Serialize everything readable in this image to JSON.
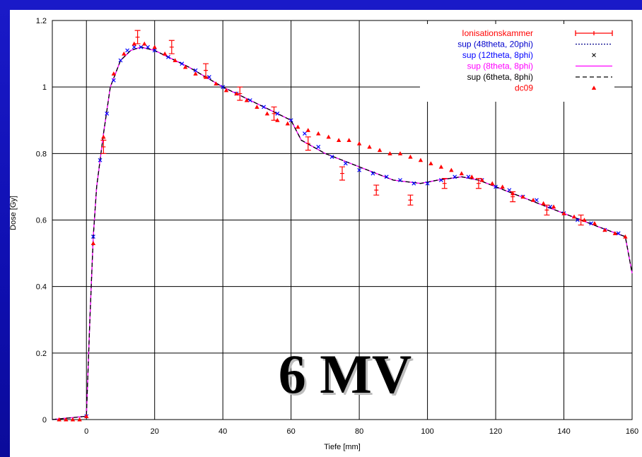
{
  "slide": {
    "background_color": "#1414c0",
    "overlay_label": "6 MV",
    "overlay_color": "#000000",
    "overlay_shadow": "#bdbdbd"
  },
  "chart_data": {
    "type": "line",
    "title": "",
    "xlabel": "Tiefe [mm]",
    "ylabel": "Dose [Gy]",
    "xlim": [
      -10,
      160
    ],
    "ylim": [
      0,
      1.2
    ],
    "xticks": [
      0,
      20,
      40,
      60,
      80,
      100,
      120,
      140,
      160
    ],
    "yticks": [
      0,
      0.2,
      0.4,
      0.6,
      0.8,
      1,
      1.2
    ],
    "ytick_labels": [
      "0",
      "0.2",
      "0.4",
      "0.6",
      "0.8",
      "1",
      "1.2"
    ],
    "grid": true,
    "legend_position": "top-right",
    "series": [
      {
        "name": "Ionisationskammer",
        "style": "errorbar",
        "color": "#ff0000",
        "x": [
          5,
          15,
          25,
          35,
          45,
          55,
          65,
          75,
          85,
          95,
          105,
          115,
          125,
          135,
          145
        ],
        "y": [
          0.82,
          1.15,
          1.12,
          1.05,
          0.98,
          0.92,
          0.83,
          0.74,
          0.69,
          0.66,
          0.71,
          0.71,
          0.67,
          0.63,
          0.6
        ],
        "err": [
          0.02,
          0.02,
          0.02,
          0.02,
          0.02,
          0.02,
          0.02,
          0.02,
          0.015,
          0.015,
          0.015,
          0.015,
          0.015,
          0.015,
          0.015
        ]
      },
      {
        "name": "sup (48theta, 20phi)",
        "style": "dotted",
        "color": "#00008b",
        "x": [
          -10,
          0,
          1,
          2,
          3,
          5,
          7,
          10,
          13,
          16,
          20,
          30,
          40,
          50,
          56,
          60,
          63,
          70,
          80,
          90,
          98,
          103,
          110,
          115,
          120,
          130,
          140,
          150,
          158,
          160
        ],
        "y": [
          0,
          0.01,
          0.3,
          0.55,
          0.7,
          0.86,
          1.0,
          1.08,
          1.11,
          1.12,
          1.11,
          1.06,
          1.0,
          0.95,
          0.92,
          0.9,
          0.84,
          0.8,
          0.76,
          0.72,
          0.71,
          0.72,
          0.73,
          0.72,
          0.7,
          0.66,
          0.62,
          0.58,
          0.55,
          0.44
        ]
      },
      {
        "name": "sup (12theta, 8phi)",
        "style": "markers",
        "color": "#0000ff",
        "x": [
          0,
          2,
          4,
          6,
          8,
          10,
          12,
          14,
          16,
          18,
          20,
          24,
          28,
          32,
          36,
          40,
          44,
          48,
          52,
          56,
          60,
          64,
          68,
          72,
          76,
          80,
          84,
          88,
          92,
          96,
          100,
          104,
          108,
          112,
          116,
          120,
          124,
          128,
          132,
          136,
          140,
          144,
          148,
          152,
          156
        ],
        "y": [
          0.01,
          0.55,
          0.78,
          0.92,
          1.02,
          1.08,
          1.11,
          1.12,
          1.12,
          1.12,
          1.11,
          1.09,
          1.07,
          1.05,
          1.03,
          1.0,
          0.98,
          0.96,
          0.94,
          0.92,
          0.9,
          0.86,
          0.82,
          0.79,
          0.77,
          0.75,
          0.74,
          0.73,
          0.72,
          0.71,
          0.71,
          0.72,
          0.73,
          0.73,
          0.72,
          0.7,
          0.69,
          0.67,
          0.66,
          0.64,
          0.62,
          0.6,
          0.59,
          0.57,
          0.56
        ]
      },
      {
        "name": "sup (8theta, 8phi)",
        "style": "solid",
        "color": "#ff00ff",
        "x": [
          -10,
          0,
          1,
          2,
          3,
          5,
          7,
          10,
          13,
          16,
          20,
          30,
          40,
          50,
          56,
          60,
          63,
          70,
          80,
          90,
          98,
          103,
          110,
          115,
          120,
          130,
          140,
          150,
          158,
          160
        ],
        "y": [
          0,
          0.01,
          0.3,
          0.55,
          0.7,
          0.86,
          1.0,
          1.08,
          1.11,
          1.12,
          1.11,
          1.06,
          1.0,
          0.95,
          0.92,
          0.9,
          0.84,
          0.8,
          0.76,
          0.72,
          0.71,
          0.72,
          0.73,
          0.72,
          0.7,
          0.66,
          0.62,
          0.58,
          0.55,
          0.44
        ]
      },
      {
        "name": "sup (6theta, 8phi)",
        "style": "dashed",
        "color": "#000000",
        "x": [
          -10,
          0,
          1,
          2,
          3,
          5,
          7,
          10,
          13,
          16,
          20,
          30,
          40,
          50,
          56,
          60,
          63,
          70,
          80,
          90,
          98,
          103,
          110,
          115,
          120,
          130,
          140,
          150,
          158,
          160
        ],
        "y": [
          0,
          0.01,
          0.3,
          0.55,
          0.7,
          0.86,
          1.0,
          1.08,
          1.11,
          1.12,
          1.11,
          1.06,
          1.0,
          0.95,
          0.92,
          0.9,
          0.84,
          0.8,
          0.76,
          0.72,
          0.71,
          0.72,
          0.73,
          0.72,
          0.7,
          0.66,
          0.62,
          0.58,
          0.55,
          0.44
        ]
      },
      {
        "name": "dc09",
        "style": "triangles",
        "color": "#ff0000",
        "x": [
          -8,
          -6,
          -4,
          -2,
          0,
          2,
          5,
          8,
          11,
          14,
          17,
          20,
          23,
          26,
          29,
          32,
          35,
          38,
          41,
          44,
          47,
          50,
          53,
          56,
          59,
          62,
          65,
          68,
          71,
          74,
          77,
          80,
          83,
          86,
          89,
          92,
          95,
          98,
          101,
          104,
          107,
          110,
          113,
          116,
          119,
          122,
          125,
          128,
          131,
          134,
          137,
          140,
          143,
          146,
          149,
          152,
          155,
          158
        ],
        "y": [
          0,
          0,
          0,
          0,
          0.01,
          0.53,
          0.85,
          1.04,
          1.1,
          1.13,
          1.13,
          1.12,
          1.1,
          1.08,
          1.06,
          1.04,
          1.03,
          1.01,
          0.99,
          0.98,
          0.96,
          0.94,
          0.92,
          0.9,
          0.89,
          0.88,
          0.87,
          0.86,
          0.85,
          0.84,
          0.84,
          0.83,
          0.82,
          0.81,
          0.8,
          0.8,
          0.79,
          0.78,
          0.77,
          0.76,
          0.75,
          0.74,
          0.73,
          0.72,
          0.71,
          0.7,
          0.68,
          0.67,
          0.66,
          0.65,
          0.64,
          0.62,
          0.61,
          0.6,
          0.59,
          0.57,
          0.56,
          0.55
        ]
      }
    ]
  }
}
